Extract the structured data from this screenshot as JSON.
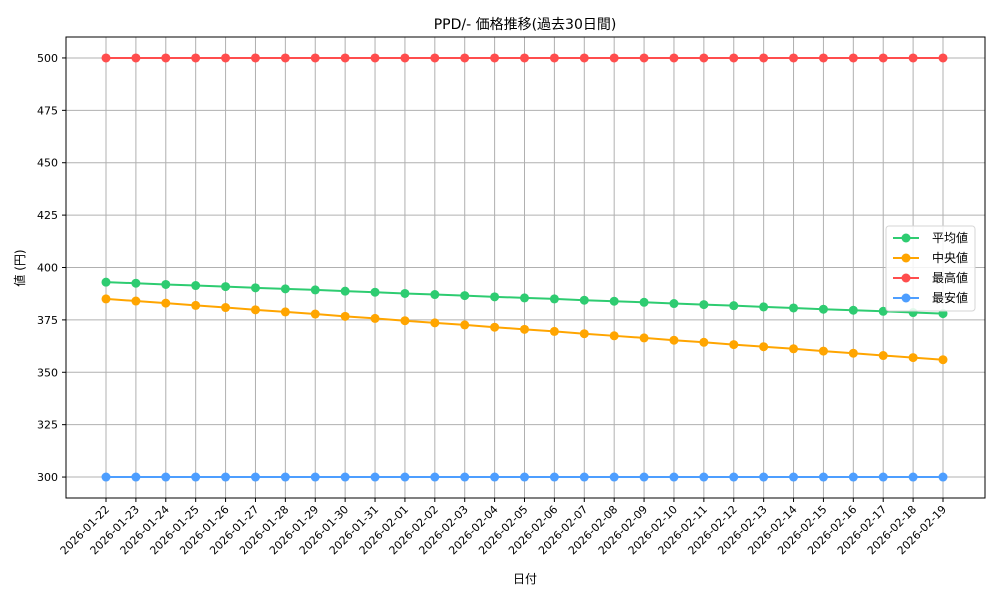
{
  "chart_data": {
    "type": "line",
    "title": "PPD/- 価格推移(過去30日間)",
    "xlabel": "日付",
    "ylabel": "値 (円)",
    "ylim": [
      290,
      510
    ],
    "yticks": [
      300,
      325,
      350,
      375,
      400,
      425,
      450,
      475,
      500
    ],
    "grid": true,
    "legend_position": "center right",
    "categories": [
      "2026-01-22",
      "2026-01-23",
      "2026-01-24",
      "2026-01-25",
      "2026-01-26",
      "2026-01-27",
      "2026-01-28",
      "2026-01-29",
      "2026-01-30",
      "2026-01-31",
      "2026-02-01",
      "2026-02-02",
      "2026-02-03",
      "2026-02-04",
      "2026-02-05",
      "2026-02-06",
      "2026-02-07",
      "2026-02-08",
      "2026-02-09",
      "2026-02-10",
      "2026-02-11",
      "2026-02-12",
      "2026-02-13",
      "2026-02-14",
      "2026-02-15",
      "2026-02-16",
      "2026-02-17",
      "2026-02-18",
      "2026-02-19"
    ],
    "series": [
      {
        "name": "平均値",
        "color": "#2ecc71",
        "values": [
          393.0,
          392.5,
          391.9,
          391.4,
          390.9,
          390.3,
          389.8,
          389.3,
          388.7,
          388.2,
          387.6,
          387.1,
          386.6,
          386.0,
          385.5,
          385.0,
          384.4,
          383.9,
          383.4,
          382.8,
          382.3,
          381.8,
          381.2,
          380.7,
          380.1,
          379.6,
          379.1,
          378.5,
          378.0
        ]
      },
      {
        "name": "中央値",
        "color": "#ffa500",
        "values": [
          385.0,
          384.0,
          383.0,
          381.9,
          380.9,
          379.8,
          378.8,
          377.8,
          376.7,
          375.7,
          374.6,
          373.6,
          372.6,
          371.5,
          370.5,
          369.5,
          368.4,
          367.4,
          366.4,
          365.3,
          364.3,
          363.2,
          362.2,
          361.2,
          360.1,
          359.1,
          358.0,
          357.0,
          356.0
        ]
      },
      {
        "name": "最高値",
        "color": "#ff4d4d",
        "values": [
          500,
          500,
          500,
          500,
          500,
          500,
          500,
          500,
          500,
          500,
          500,
          500,
          500,
          500,
          500,
          500,
          500,
          500,
          500,
          500,
          500,
          500,
          500,
          500,
          500,
          500,
          500,
          500,
          500
        ]
      },
      {
        "name": "最安値",
        "color": "#4d9eff",
        "values": [
          300,
          300,
          300,
          300,
          300,
          300,
          300,
          300,
          300,
          300,
          300,
          300,
          300,
          300,
          300,
          300,
          300,
          300,
          300,
          300,
          300,
          300,
          300,
          300,
          300,
          300,
          300,
          300,
          300
        ]
      }
    ]
  }
}
